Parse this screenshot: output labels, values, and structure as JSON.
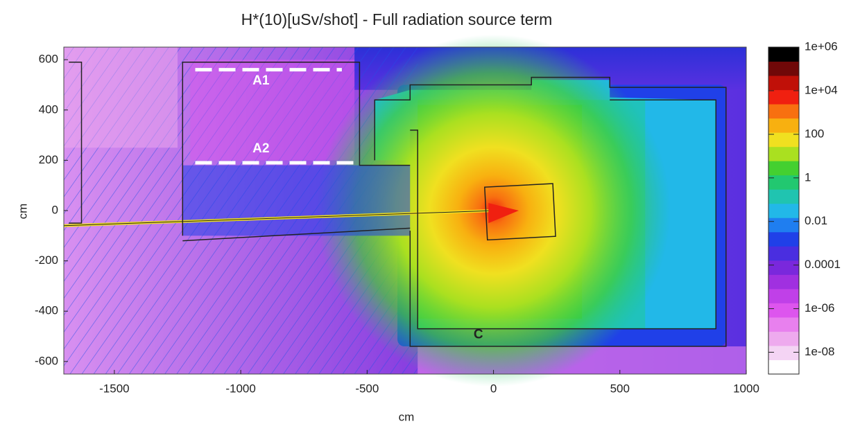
{
  "chart_data": {
    "type": "heatmap",
    "title": "H*(10)[uSv/shot] - Full radiation source term",
    "xlabel": "cm",
    "ylabel": "cm",
    "xlim": [
      -1700,
      1000
    ],
    "ylim": [
      -650,
      650
    ],
    "xticks": [
      -1500,
      -1000,
      -500,
      0,
      500,
      1000
    ],
    "yticks": [
      -600,
      -400,
      -200,
      0,
      200,
      400,
      600
    ],
    "color_scale": "log",
    "clim": [
      1e-09,
      1000000
    ],
    "cticks": [
      {
        "value": 1000000,
        "label": "1e+06"
      },
      {
        "value": 10000,
        "label": "1e+04"
      },
      100,
      1,
      0.01,
      0.0001,
      {
        "value": 1e-06,
        "label": "1e-06"
      },
      {
        "value": 1e-08,
        "label": "1e-08"
      }
    ],
    "colormap": [
      "#ffffff",
      "#f4d4f4",
      "#eeaaee",
      "#e880ee",
      "#dd55ee",
      "#c040e8",
      "#a030e0",
      "#7a28dc",
      "#4a2ee0",
      "#2040e8",
      "#1f7ef0",
      "#22b8e8",
      "#20c4b0",
      "#22c870",
      "#44d030",
      "#aae020",
      "#f0e020",
      "#f8b010",
      "#f87010",
      "#f02010",
      "#c01008",
      "#700808",
      "#000000"
    ],
    "annotations": [
      "A1",
      "A2",
      "C"
    ]
  }
}
